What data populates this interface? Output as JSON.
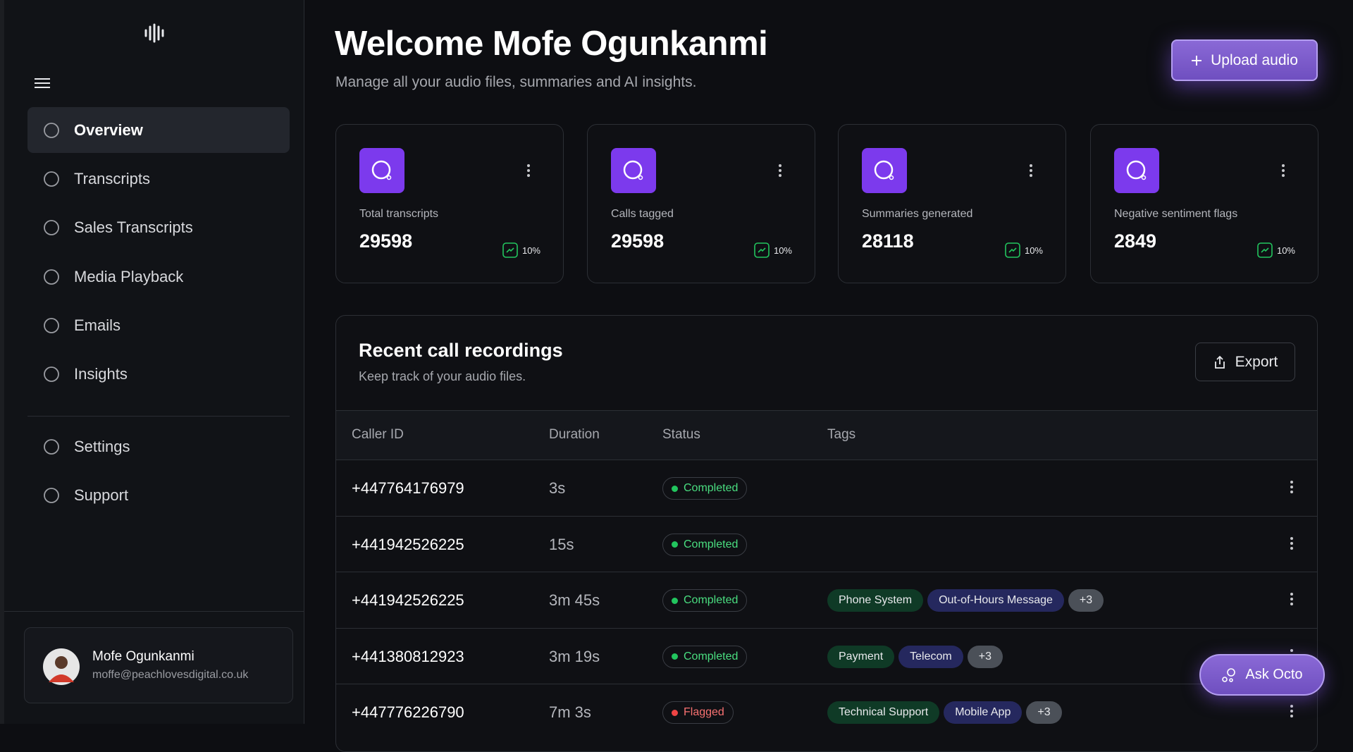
{
  "sidebar": {
    "nav": [
      "Overview",
      "Transcripts",
      "Sales Transcripts",
      "Media Playback",
      "Emails",
      "Insights"
    ],
    "secondary": [
      "Settings",
      "Support"
    ],
    "user": {
      "name": "Mofe Ogunkanmi",
      "email": "moffe@peachlovesdigital.co.uk"
    }
  },
  "header": {
    "title": "Welcome Mofe Ogunkanmi",
    "subtitle": "Manage all your audio files, summaries and AI insights.",
    "upload_button": "Upload audio"
  },
  "stats": [
    {
      "label": "Total transcripts",
      "value": 29598,
      "change": "10%"
    },
    {
      "label": "Calls tagged",
      "value": 29598,
      "change": "10%"
    },
    {
      "label": "Summaries generated",
      "value": 28118,
      "change": "10%"
    },
    {
      "label": "Negative sentiment flags",
      "value": 2849,
      "change": "10%"
    }
  ],
  "recordings": {
    "title": "Recent call recordings",
    "subtitle": "Keep track of your audio files.",
    "export_button": "Export",
    "columns": [
      "Caller ID",
      "Duration",
      "Status",
      "Tags"
    ],
    "rows": [
      {
        "caller_id": "+447764176979",
        "duration": "3s",
        "status": "Completed",
        "tags": []
      },
      {
        "caller_id": "+441942526225",
        "duration": "15s",
        "status": "Completed",
        "tags": []
      },
      {
        "caller_id": "+441942526225",
        "duration": "3m 45s",
        "status": "Completed",
        "tags": [
          "Phone System",
          "Out-of-Hours Message",
          "+3"
        ]
      },
      {
        "caller_id": "+441380812923",
        "duration": "3m 19s",
        "status": "Completed",
        "tags": [
          "Payment",
          "Telecom",
          "+3"
        ]
      },
      {
        "caller_id": "+447776226790",
        "duration": "7m 3s",
        "status": "Flagged",
        "tags": [
          "Technical Support",
          "Mobile App",
          "+3"
        ]
      }
    ]
  },
  "assistant_button": "Ask Octo"
}
